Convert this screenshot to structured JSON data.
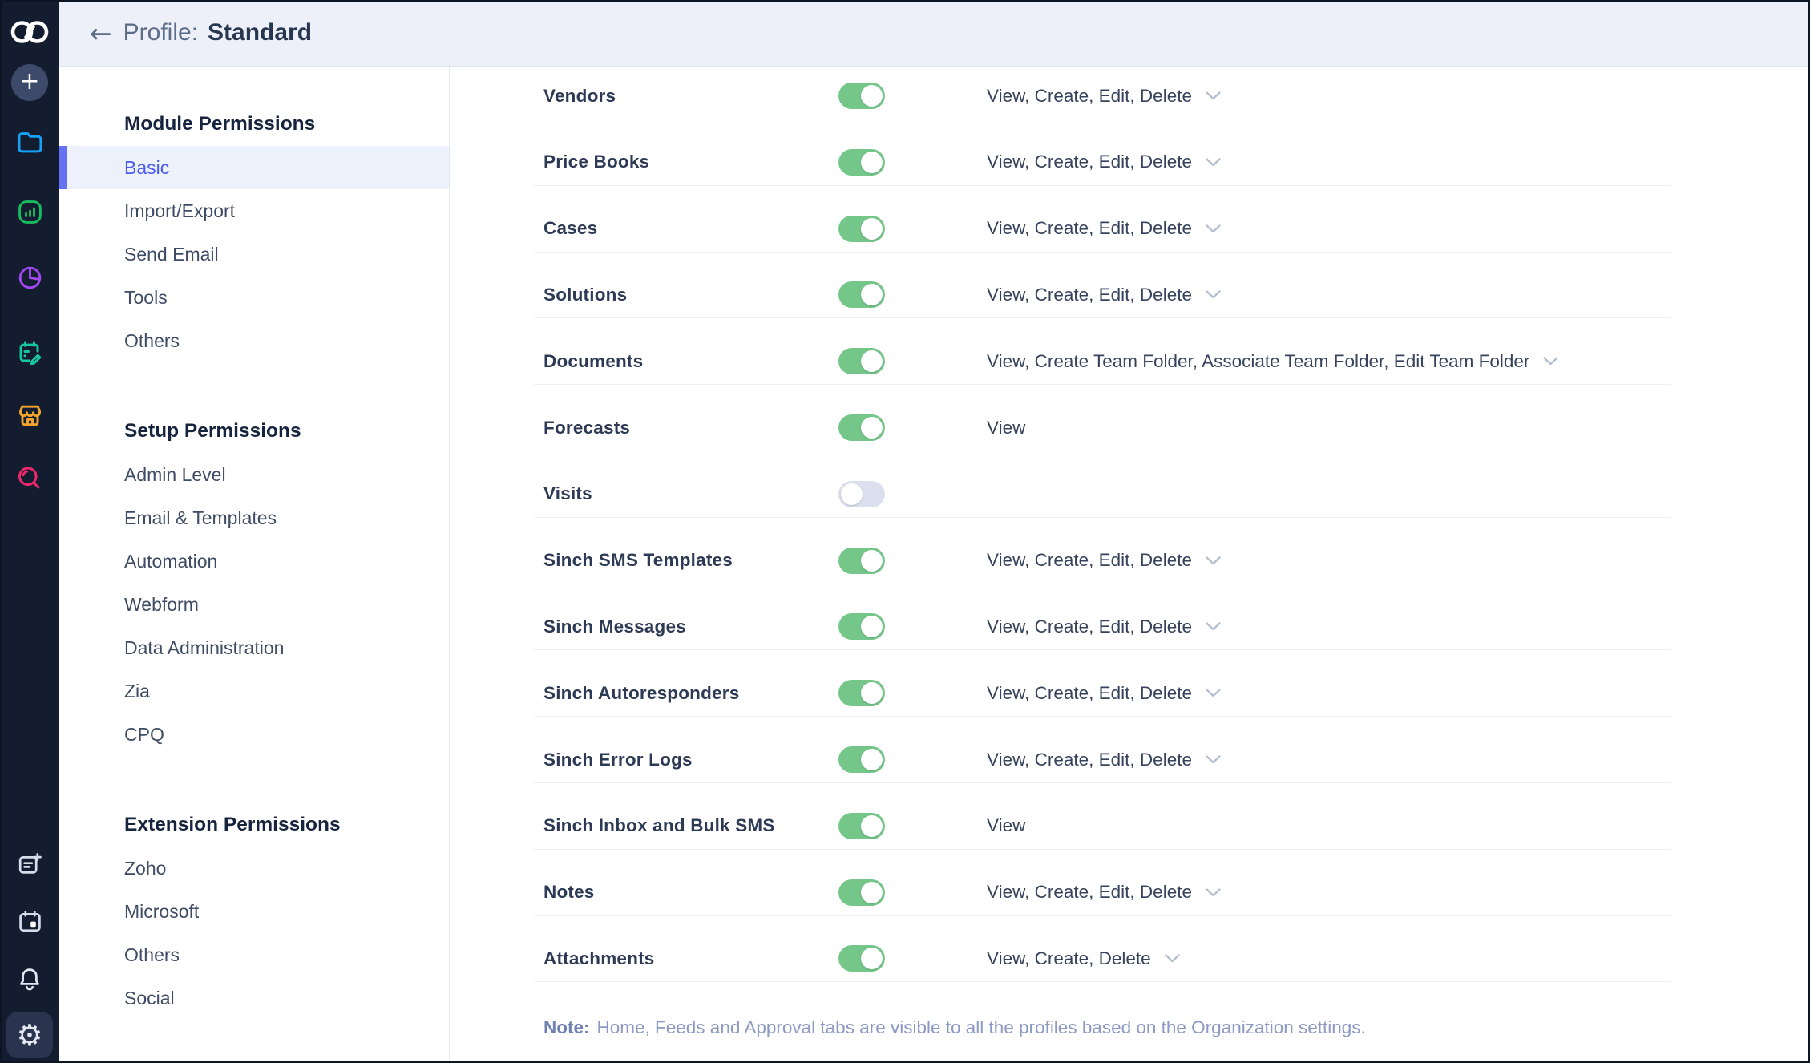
{
  "header": {
    "back_arrow": "←",
    "title_label": "Profile:",
    "title_value": "Standard"
  },
  "rail": {
    "icons": [
      "zoho-crm-logo",
      "add",
      "folders",
      "analytics",
      "reports",
      "activities",
      "marketplace",
      "zia-search",
      "compose-note",
      "calendar",
      "notifications",
      "settings"
    ],
    "add_glyph": "+",
    "settings_glyph": "⚙"
  },
  "sidenav": {
    "sections": [
      {
        "heading": "Module Permissions",
        "items": [
          {
            "label": "Basic",
            "active": true
          },
          {
            "label": "Import/Export",
            "active": false
          },
          {
            "label": "Send Email",
            "active": false
          },
          {
            "label": "Tools",
            "active": false
          },
          {
            "label": "Others",
            "active": false
          }
        ]
      },
      {
        "heading": "Setup Permissions",
        "items": [
          {
            "label": "Admin Level",
            "active": false
          },
          {
            "label": "Email & Templates",
            "active": false
          },
          {
            "label": "Automation",
            "active": false
          },
          {
            "label": "Webform",
            "active": false
          },
          {
            "label": "Data Administration",
            "active": false
          },
          {
            "label": "Zia",
            "active": false
          },
          {
            "label": "CPQ",
            "active": false
          }
        ]
      },
      {
        "heading": "Extension Permissions",
        "items": [
          {
            "label": "Zoho",
            "active": false
          },
          {
            "label": "Microsoft",
            "active": false
          },
          {
            "label": "Others",
            "active": false
          },
          {
            "label": "Social",
            "active": false
          }
        ]
      }
    ]
  },
  "modules": [
    {
      "label": "Vendors",
      "enabled": true,
      "permissions": "View, Create, Edit, Delete",
      "dropdown": true
    },
    {
      "label": "Price Books",
      "enabled": true,
      "permissions": "View, Create, Edit, Delete",
      "dropdown": true
    },
    {
      "label": "Cases",
      "enabled": true,
      "permissions": "View, Create, Edit, Delete",
      "dropdown": true
    },
    {
      "label": "Solutions",
      "enabled": true,
      "permissions": "View, Create, Edit, Delete",
      "dropdown": true
    },
    {
      "label": "Documents",
      "enabled": true,
      "permissions": "View, Create Team Folder, Associate Team Folder, Edit Team Folder",
      "dropdown": true
    },
    {
      "label": "Forecasts",
      "enabled": true,
      "permissions": "View",
      "dropdown": false
    },
    {
      "label": "Visits",
      "enabled": false,
      "permissions": "",
      "dropdown": false
    },
    {
      "label": "Sinch SMS Templates",
      "enabled": true,
      "permissions": "View, Create, Edit, Delete",
      "dropdown": true
    },
    {
      "label": "Sinch Messages",
      "enabled": true,
      "permissions": "View, Create, Edit, Delete",
      "dropdown": true
    },
    {
      "label": "Sinch Autoresponders",
      "enabled": true,
      "permissions": "View, Create, Edit, Delete",
      "dropdown": true
    },
    {
      "label": "Sinch Error Logs",
      "enabled": true,
      "permissions": "View, Create, Edit, Delete",
      "dropdown": true
    },
    {
      "label": "Sinch Inbox and Bulk SMS",
      "enabled": true,
      "permissions": "View",
      "dropdown": false
    },
    {
      "label": "Notes",
      "enabled": true,
      "permissions": "View, Create, Edit, Delete",
      "dropdown": true
    },
    {
      "label": "Attachments",
      "enabled": true,
      "permissions": "View, Create, Delete",
      "dropdown": true
    }
  ],
  "note": {
    "prefix": "Note:",
    "text": "Home, Feeds and Approval tabs are visible to all the profiles based on the Organization settings."
  },
  "colors": {
    "rail_bg": "#141c30",
    "topbar_bg": "#edf0f8",
    "toggle_on": "#74c789",
    "toggle_off": "#dcdfee",
    "active_nav": "#4a5bee",
    "accent_bar": "#6472f2",
    "folder_icon": "#15a2f5",
    "analytics_icon": "#17bb5e",
    "reports_icon": "#a248f0",
    "activities_icon": "#16c9a1",
    "marketplace_icon": "#f2a42c",
    "zia_icon": "#f2286f"
  }
}
